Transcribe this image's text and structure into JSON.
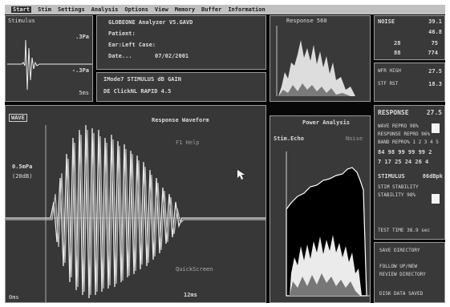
{
  "menu": [
    "Start",
    "Stim",
    "Settings",
    "Analysis",
    "Options",
    "View",
    "Memory",
    "Buffer",
    "Information"
  ],
  "stimulus": {
    "title": "Stimulus",
    "scale_top": ".3Pa",
    "scale_bottom": "-.3Pa",
    "time": "5ms"
  },
  "patient": {
    "system": "GLOBEONE Analyzer V5.GAVD",
    "patient_label": "Patient:",
    "ear_line": "Ear:Left  Case:",
    "date_label": "Date...",
    "date_value": "07/02/2001",
    "mode_line": "IMode7  STIMULUS   dB GAIN",
    "mode_value_line": "DE ClickNL  RAPID    4.5"
  },
  "response_mini": {
    "title": "Response 560"
  },
  "noise": {
    "noise_label": "NOISE",
    "noise_val1": "39.1",
    "noise_val2": "46.8",
    "item1": "28",
    "item1_val": "75",
    "item2": "88",
    "item2_val": "774",
    "wfr_label": "WFR HIGH",
    "wfr_val": "27.5",
    "stf_label": "STF RST",
    "stf_val": "18.3"
  },
  "waveform": {
    "tab": "WAVE",
    "title": "Response Waveform",
    "help": "F1 Help",
    "scale": "0.5mPa",
    "scale2": "(20dB)",
    "quickscreen": "QuickScreen",
    "time": "12ms",
    "bottom_left": "0ms"
  },
  "power": {
    "title": "Power Analysis",
    "legend_signal": "Stim.Echo",
    "legend_noise": "Noise"
  },
  "response_panel": {
    "header": "RESPONSE",
    "header_val": "27.5",
    "lines": [
      "WAVE REPRO  98%",
      "RESPONSE REPRO 96%",
      "BAND REPRO% 1 2 3 4 5",
      "84 98 99 99 99 2",
      "7 17 25 24 26 4"
    ],
    "stimulus_label": "STIMULUS",
    "stimulus_val": "86dBpk",
    "stim_lines": [
      "STIM STABILITY",
      "STABILITY 98%"
    ],
    "test_time": "TEST TIME 38.9 sec"
  },
  "directory": {
    "lines": [
      "SAVE DIRECTORY",
      "FOLLOW UP/NEW",
      "REVIEW DIRECTORY",
      "",
      "DISK DATA SAVED"
    ]
  }
}
